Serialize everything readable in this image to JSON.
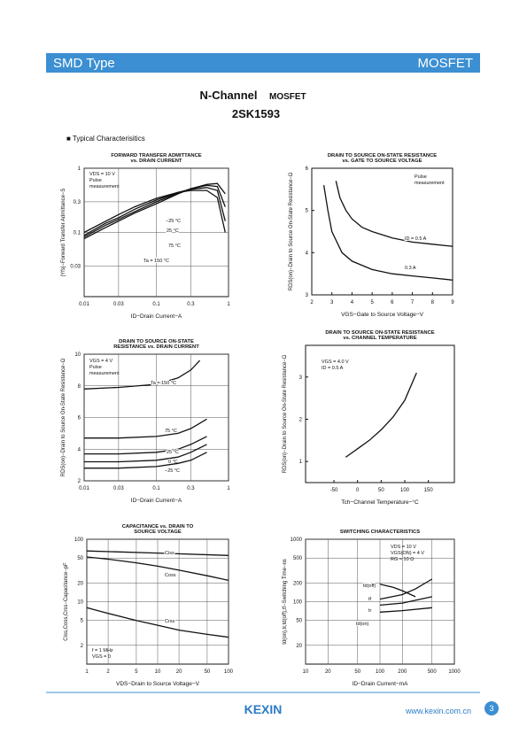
{
  "header": {
    "left": "SMD Type",
    "right": "MOSFET"
  },
  "title": "N-Channel",
  "title_suffix": "MOSFET",
  "part": "2SK1593",
  "section": "■ Typical Characterisitics",
  "footer": {
    "logo": "KEXIN",
    "url": "www.kexin.com.cn",
    "page": "3"
  },
  "chart_data": [
    {
      "type": "line",
      "title": [
        "FORWARD TRANSFER ADMITTANCE",
        "vs. DRAIN CURRENT"
      ],
      "xlabel": "ID−Drain Current−A",
      "ylabel": "|Yfs|−Forward Transfer Admittance−S",
      "xlog": true,
      "ylog": true,
      "xlim": [
        0.01,
        1
      ],
      "ylim": [
        0.01,
        1
      ],
      "xticks": [
        0.01,
        0.03,
        0.1,
        0.3,
        1
      ],
      "yticks": [
        0.03,
        0.1,
        0.3,
        1
      ],
      "grid": true,
      "color": "#111",
      "notes": [
        "VDS = 10 V",
        "Pulse",
        "measurement"
      ],
      "series": [
        {
          "name": "−25 °C",
          "x": [
            0.01,
            0.02,
            0.03,
            0.05,
            0.1,
            0.2,
            0.3,
            0.5,
            0.7,
            0.9
          ],
          "values": [
            0.1,
            0.15,
            0.19,
            0.25,
            0.34,
            0.42,
            0.45,
            0.45,
            0.35,
            0.1
          ]
        },
        {
          "name": "25 °C",
          "x": [
            0.01,
            0.02,
            0.03,
            0.05,
            0.1,
            0.2,
            0.3,
            0.5,
            0.7,
            0.9
          ],
          "values": [
            0.09,
            0.14,
            0.17,
            0.23,
            0.32,
            0.42,
            0.47,
            0.5,
            0.45,
            0.15
          ]
        },
        {
          "name": "75 °C",
          "x": [
            0.01,
            0.02,
            0.03,
            0.05,
            0.1,
            0.2,
            0.3,
            0.5,
            0.7,
            0.9
          ],
          "values": [
            0.085,
            0.13,
            0.16,
            0.21,
            0.3,
            0.41,
            0.48,
            0.54,
            0.52,
            0.25
          ]
        },
        {
          "name": "Ta = 150 °C",
          "x": [
            0.01,
            0.02,
            0.03,
            0.05,
            0.1,
            0.2,
            0.3,
            0.5,
            0.7,
            0.9
          ],
          "values": [
            0.08,
            0.12,
            0.15,
            0.2,
            0.28,
            0.4,
            0.48,
            0.56,
            0.58,
            0.4
          ]
        }
      ]
    },
    {
      "type": "line",
      "title": [
        "DRAIN TO SOURCE ON-STATE RESISTANCE",
        "vs. GATE TO SOURCE VOLTAGE"
      ],
      "xlabel": "VGS−Gate to Source Voltage−V",
      "ylabel": "RDS(on)−Drain to Source On-State Resistance−Ω",
      "xlog": false,
      "ylog": false,
      "xlim": [
        2,
        9
      ],
      "ylim": [
        3,
        6
      ],
      "xticks": [
        2,
        3,
        4,
        5,
        6,
        7,
        8,
        9
      ],
      "yticks": [
        3,
        4,
        5,
        6
      ],
      "grid": false,
      "color": "#111",
      "notes": [
        "Pulse",
        "measurement"
      ],
      "series": [
        {
          "name": "ID = 0.5 A",
          "x": [
            3.2,
            3.4,
            3.7,
            4,
            4.5,
            5,
            6,
            7,
            8,
            9
          ],
          "values": [
            5.7,
            5.3,
            5.0,
            4.8,
            4.6,
            4.5,
            4.35,
            4.25,
            4.2,
            4.15
          ]
        },
        {
          "name": "0.3 A",
          "x": [
            2.6,
            2.8,
            3,
            3.5,
            4,
            5,
            6,
            7,
            8,
            9
          ],
          "values": [
            5.6,
            5.0,
            4.5,
            4.0,
            3.8,
            3.6,
            3.5,
            3.45,
            3.4,
            3.35
          ]
        }
      ]
    },
    {
      "type": "line",
      "title": [
        "DRAIN TO SOURCE ON-STATE",
        "RESISTANCE vs. DRAIN CURRENT"
      ],
      "xlabel": "ID−Drain Current−A",
      "ylabel": "RDS(on)−Drain to Source On-State Resistance−Ω",
      "xlog": true,
      "ylog": false,
      "xlim": [
        0.01,
        1
      ],
      "ylim": [
        2,
        10
      ],
      "xticks": [
        0.01,
        0.03,
        0.1,
        0.3,
        1
      ],
      "yticks": [
        2,
        4,
        6,
        8,
        10
      ],
      "grid": true,
      "color": "#111",
      "notes": [
        "VGS = 4 V",
        "Pulse",
        "measurement"
      ],
      "series": [
        {
          "name": "Ta = 150 °C",
          "x": [
            0.01,
            0.03,
            0.1,
            0.2,
            0.3,
            0.4
          ],
          "values": [
            7.8,
            7.9,
            8.1,
            8.5,
            9.0,
            9.6
          ]
        },
        {
          "name": "75 °C",
          "x": [
            0.01,
            0.03,
            0.1,
            0.2,
            0.3,
            0.5
          ],
          "values": [
            4.7,
            4.7,
            4.8,
            5.0,
            5.3,
            5.9
          ]
        },
        {
          "name": "25 °C",
          "x": [
            0.01,
            0.03,
            0.1,
            0.2,
            0.3,
            0.5
          ],
          "values": [
            3.7,
            3.7,
            3.8,
            4.0,
            4.3,
            4.8
          ]
        },
        {
          "name": "0 °C",
          "x": [
            0.01,
            0.03,
            0.1,
            0.2,
            0.3,
            0.5
          ],
          "values": [
            3.2,
            3.2,
            3.3,
            3.5,
            3.8,
            4.3
          ]
        },
        {
          "name": "−25 °C",
          "x": [
            0.01,
            0.03,
            0.1,
            0.2,
            0.3,
            0.5
          ],
          "values": [
            2.8,
            2.8,
            2.9,
            3.1,
            3.3,
            3.8
          ]
        }
      ]
    },
    {
      "type": "line",
      "title": [
        "DRAIN TO SOURCE ON-STATE RESISTANCE",
        "vs. CHANNEL TEMPERATURE"
      ],
      "xlabel": "Tch−Channel Temperature−°C",
      "ylabel": "RDS(on)−Drain to Source On-State Resistance−Ω",
      "xlog": false,
      "ylog": false,
      "xlim": [
        -110,
        205
      ],
      "ylim": [
        0.5,
        3.75
      ],
      "xticks": [
        -50,
        0,
        50,
        100,
        150
      ],
      "yticks": [
        1,
        2,
        3
      ],
      "grid": false,
      "color": "#111",
      "notes": [
        "VGS = 4.0 V",
        "ID = 0.5 A"
      ],
      "series": [
        {
          "name": null,
          "x": [
            -25,
            0,
            25,
            50,
            75,
            100,
            125
          ],
          "values": [
            1.1,
            1.3,
            1.5,
            1.75,
            2.05,
            2.45,
            3.1
          ]
        }
      ]
    },
    {
      "type": "line",
      "title": [
        "CAPACITANCE vs. DRAIN TO",
        "SOURCE VOLTAGE"
      ],
      "xlabel": "VDS−Drain to Source Voltage−V",
      "ylabel": "Ciss,Coss,Crss−Capacitance−pF",
      "xlog": true,
      "ylog": true,
      "xlim": [
        1,
        100
      ],
      "ylim": [
        1,
        100
      ],
      "xticks": [
        1,
        2,
        5,
        10,
        20,
        50,
        100
      ],
      "yticks": [
        2,
        5,
        10,
        20,
        50,
        100
      ],
      "grid": true,
      "color": "#111",
      "notes": [
        "f = 1 MHz",
        "VGS = 0"
      ],
      "series": [
        {
          "name": "Ciss",
          "x": [
            1,
            10,
            100
          ],
          "values": [
            65,
            60,
            55
          ]
        },
        {
          "name": "Coss",
          "x": [
            1,
            2,
            5,
            10,
            20,
            50,
            100
          ],
          "values": [
            52,
            48,
            42,
            37,
            32,
            26,
            22
          ]
        },
        {
          "name": "Crss",
          "x": [
            1,
            2,
            5,
            10,
            20,
            50,
            100
          ],
          "values": [
            8,
            6.5,
            5,
            4.2,
            3.5,
            3,
            2.7
          ]
        }
      ]
    },
    {
      "type": "line",
      "title": [
        "SWITCHING CHARACTERISTICS"
      ],
      "xlabel": "ID−Drain Current−mA",
      "ylabel": "td(on),tr,td(off),tf−Switching Time−ns",
      "xlog": true,
      "ylog": true,
      "xlim": [
        10,
        1000
      ],
      "ylim": [
        10,
        1000
      ],
      "xticks": [
        10,
        20,
        50,
        100,
        200,
        500,
        1000
      ],
      "yticks": [
        20,
        50,
        100,
        200,
        500,
        1000
      ],
      "grid": true,
      "color": "#111",
      "notes": [
        "VDS = 10 V",
        "VGS(ON) = 4 V",
        "RG = 10 Ω"
      ],
      "series": [
        {
          "name": "td(off)",
          "x": [
            100,
            150,
            200,
            300
          ],
          "values": [
            190,
            170,
            150,
            120
          ]
        },
        {
          "name": "tf",
          "x": [
            100,
            200,
            300,
            500
          ],
          "values": [
            110,
            130,
            160,
            230
          ]
        },
        {
          "name": "tr",
          "x": [
            100,
            200,
            500
          ],
          "values": [
            88,
            95,
            120
          ]
        },
        {
          "name": "td(on)",
          "x": [
            100,
            200,
            500
          ],
          "values": [
            68,
            72,
            80
          ]
        }
      ]
    }
  ]
}
